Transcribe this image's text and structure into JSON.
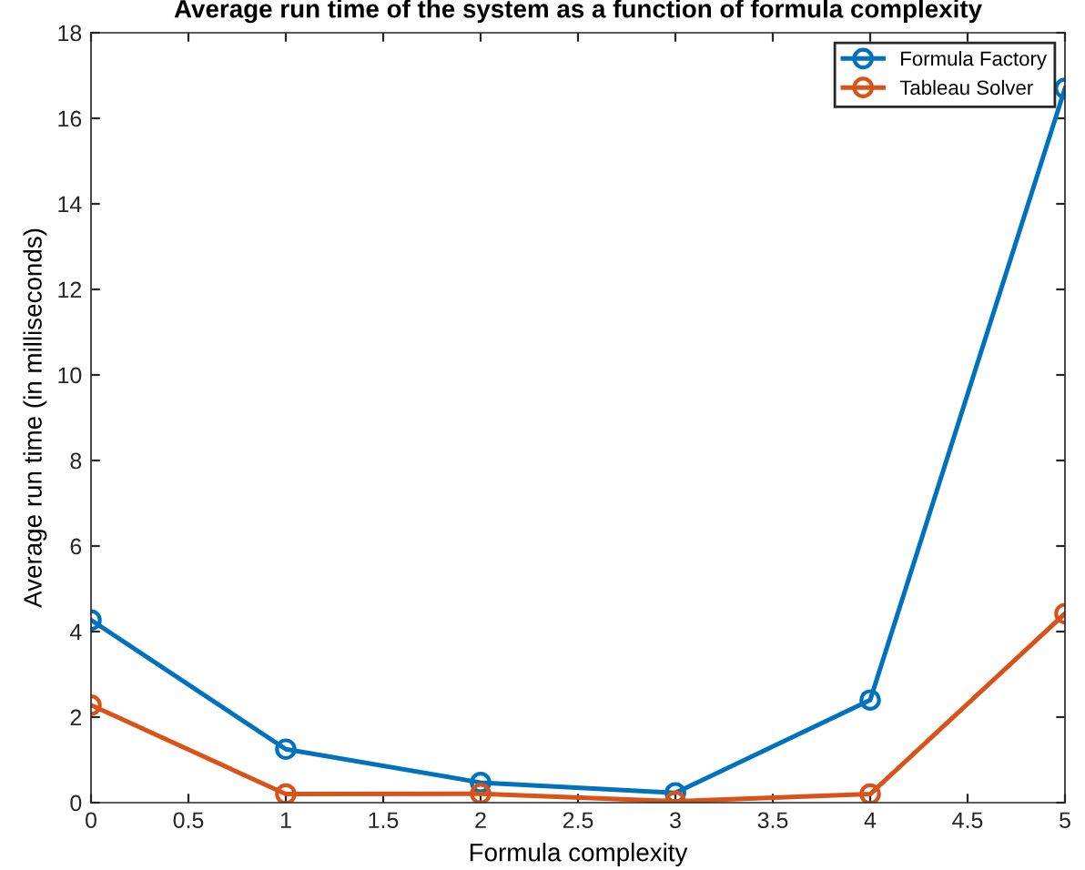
{
  "chart_data": {
    "type": "line",
    "title": "Average run time of the system as a function of formula complexity",
    "xlabel": "Formula complexity",
    "ylabel": "Average run time (in milliseconds)",
    "x": [
      0,
      1,
      2,
      3,
      4,
      5
    ],
    "series": [
      {
        "name": "Formula Factory",
        "color": "#0072bd",
        "values": [
          4.27,
          1.25,
          0.47,
          0.23,
          2.4,
          16.7
        ]
      },
      {
        "name": "Tableau Solver",
        "color": "#d95319",
        "values": [
          2.28,
          0.2,
          0.21,
          0.03,
          0.2,
          4.42
        ]
      }
    ],
    "xlim": [
      0,
      5
    ],
    "xticks": [
      0,
      0.5,
      1,
      1.5,
      2,
      2.5,
      3,
      3.5,
      4,
      4.5,
      5
    ],
    "ylim": [
      0,
      18
    ],
    "yticks": [
      0,
      2,
      4,
      6,
      8,
      10,
      12,
      14,
      16,
      18
    ],
    "grid": false,
    "legend": "top right",
    "marker": "circle",
    "line_style": "solid"
  }
}
